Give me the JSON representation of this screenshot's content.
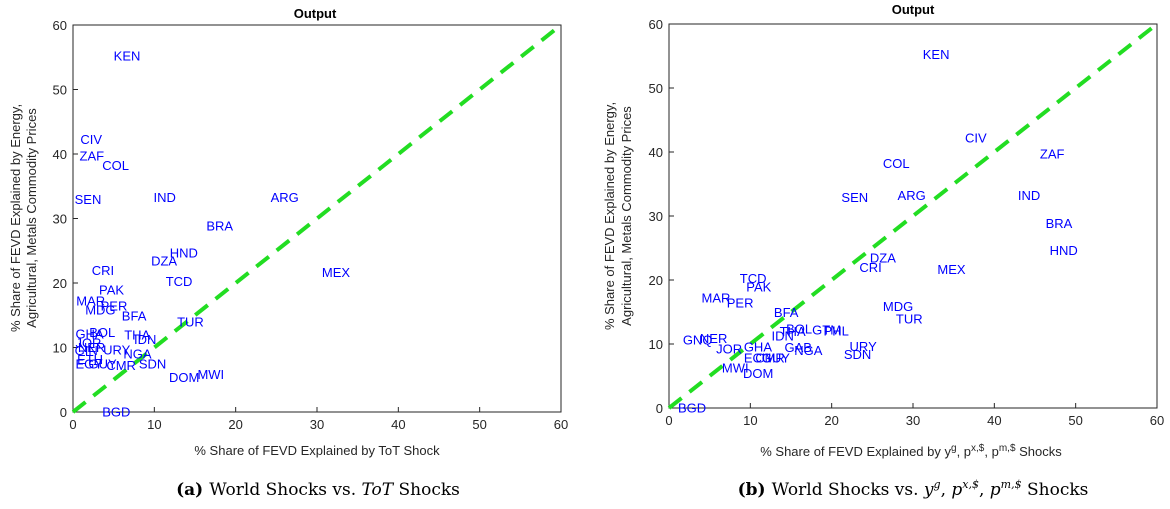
{
  "chart_data": [
    {
      "type": "scatter",
      "title": "Output",
      "xlabel": "% Share of FEVD Explained by ToT Shock",
      "ylabel": [
        "% Share of FEVD Explained by Energy,",
        "Agricultural, Metals Commodity Prices"
      ],
      "xlim": [
        0,
        60
      ],
      "ylim": [
        0,
        60
      ],
      "xticks": [
        "0",
        "10",
        "20",
        "30",
        "40",
        "50",
        "60"
      ],
      "yticks": [
        "0",
        "10",
        "20",
        "30",
        "40",
        "50",
        "60"
      ],
      "grid": false,
      "reference_line": {
        "x": [
          0,
          60
        ],
        "y": [
          0,
          60
        ],
        "style": "dashed",
        "color": "#22dd22"
      },
      "points": [
        {
          "label": "KEN",
          "x": 5.0,
          "y": 55.3
        },
        {
          "label": "CIV",
          "x": 0.9,
          "y": 42.3
        },
        {
          "label": "ZAF",
          "x": 0.8,
          "y": 39.8
        },
        {
          "label": "COL",
          "x": 3.6,
          "y": 38.3
        },
        {
          "label": "SEN",
          "x": 0.2,
          "y": 33.0
        },
        {
          "label": "IND",
          "x": 9.9,
          "y": 33.3
        },
        {
          "label": "ARG",
          "x": 24.3,
          "y": 33.3
        },
        {
          "label": "BRA",
          "x": 16.4,
          "y": 28.9
        },
        {
          "label": "HND",
          "x": 11.9,
          "y": 24.7
        },
        {
          "label": "DZA",
          "x": 9.6,
          "y": 23.5
        },
        {
          "label": "MEX",
          "x": 30.6,
          "y": 21.7
        },
        {
          "label": "CRI",
          "x": 2.3,
          "y": 22.0
        },
        {
          "label": "TCD",
          "x": 11.4,
          "y": 20.3
        },
        {
          "label": "PAK",
          "x": 3.2,
          "y": 19.0
        },
        {
          "label": "MAR",
          "x": 0.4,
          "y": 17.3
        },
        {
          "label": "PER",
          "x": 3.4,
          "y": 16.5
        },
        {
          "label": "MDG",
          "x": 1.5,
          "y": 15.9
        },
        {
          "label": "BFA",
          "x": 6.0,
          "y": 15.0
        },
        {
          "label": "TUR",
          "x": 12.8,
          "y": 14.0
        },
        {
          "label": "BOL",
          "x": 2.0,
          "y": 12.4
        },
        {
          "label": "GHA",
          "x": 0.3,
          "y": 12.2
        },
        {
          "label": "THA",
          "x": 6.3,
          "y": 12.0
        },
        {
          "label": "IDN",
          "x": 7.5,
          "y": 11.3
        },
        {
          "label": "JOR",
          "x": 0.3,
          "y": 10.8
        },
        {
          "label": "NER",
          "x": 0.6,
          "y": 10.1
        },
        {
          "label": "URY",
          "x": 3.7,
          "y": 9.7
        },
        {
          "label": "NGA",
          "x": 6.2,
          "y": 9.1
        },
        {
          "label": "GIN",
          "x": 0.2,
          "y": 9.6
        },
        {
          "label": "ETH",
          "x": 0.5,
          "y": 8.2
        },
        {
          "label": "EGY",
          "x": 0.3,
          "y": 7.5
        },
        {
          "label": "GUY",
          "x": 1.9,
          "y": 7.5
        },
        {
          "label": "CMR",
          "x": 4.1,
          "y": 7.3
        },
        {
          "label": "SDN",
          "x": 8.1,
          "y": 7.5
        },
        {
          "label": "DOM",
          "x": 11.8,
          "y": 5.4
        },
        {
          "label": "MWI",
          "x": 15.3,
          "y": 5.9
        },
        {
          "label": "BGD",
          "x": 3.6,
          "y": 0.1
        }
      ]
    },
    {
      "type": "scatter",
      "title": "Output",
      "xlabel": "% Share of FEVD Explained by y^g, p^{x,$}, p^{m,$} Shocks",
      "ylabel": [
        "% Share of FEVD Explained by Energy,",
        "Agricultural, Metals Commodity Prices"
      ],
      "xlim": [
        0,
        60
      ],
      "ylim": [
        0,
        60
      ],
      "xticks": [
        "0",
        "10",
        "20",
        "30",
        "40",
        "50",
        "60"
      ],
      "yticks": [
        "0",
        "10",
        "20",
        "30",
        "40",
        "50",
        "60"
      ],
      "grid": false,
      "reference_line": {
        "x": [
          0,
          60
        ],
        "y": [
          0,
          60
        ],
        "style": "dashed",
        "color": "#22dd22"
      },
      "points": [
        {
          "label": "KEN",
          "x": 31.2,
          "y": 55.3
        },
        {
          "label": "CIV",
          "x": 36.4,
          "y": 42.3
        },
        {
          "label": "ZAF",
          "x": 45.6,
          "y": 39.8
        },
        {
          "label": "COL",
          "x": 26.3,
          "y": 38.3
        },
        {
          "label": "SEN",
          "x": 21.2,
          "y": 33.0
        },
        {
          "label": "ARG",
          "x": 28.1,
          "y": 33.3
        },
        {
          "label": "IND",
          "x": 42.9,
          "y": 33.3
        },
        {
          "label": "BRA",
          "x": 46.3,
          "y": 28.9
        },
        {
          "label": "HND",
          "x": 46.8,
          "y": 24.7
        },
        {
          "label": "DZA",
          "x": 24.7,
          "y": 23.5
        },
        {
          "label": "CRI",
          "x": 23.4,
          "y": 22.0
        },
        {
          "label": "MEX",
          "x": 33.0,
          "y": 21.7
        },
        {
          "label": "TCD",
          "x": 8.7,
          "y": 20.3
        },
        {
          "label": "PAK",
          "x": 9.5,
          "y": 19.0
        },
        {
          "label": "MAR",
          "x": 4.0,
          "y": 17.3
        },
        {
          "label": "PER",
          "x": 7.1,
          "y": 16.5
        },
        {
          "label": "MDG",
          "x": 26.3,
          "y": 15.9
        },
        {
          "label": "BFA",
          "x": 12.9,
          "y": 15.0
        },
        {
          "label": "TUR",
          "x": 27.9,
          "y": 14.0
        },
        {
          "label": "BOL",
          "x": 14.4,
          "y": 12.4
        },
        {
          "label": "GTM",
          "x": 17.6,
          "y": 12.3
        },
        {
          "label": "PHL",
          "x": 19.0,
          "y": 12.1
        },
        {
          "label": "THA",
          "x": 13.6,
          "y": 12.0
        },
        {
          "label": "IDN",
          "x": 12.6,
          "y": 11.3
        },
        {
          "label": "GNQ",
          "x": 1.7,
          "y": 10.7
        },
        {
          "label": "NER",
          "x": 3.8,
          "y": 10.9
        },
        {
          "label": "JOR",
          "x": 5.8,
          "y": 9.3
        },
        {
          "label": "URY",
          "x": 22.2,
          "y": 9.7
        },
        {
          "label": "GHA",
          "x": 9.2,
          "y": 9.6
        },
        {
          "label": "GAB",
          "x": 14.2,
          "y": 9.5
        },
        {
          "label": "NGA",
          "x": 15.4,
          "y": 9.1
        },
        {
          "label": "SDN",
          "x": 21.5,
          "y": 8.4
        },
        {
          "label": "ECU",
          "x": 9.2,
          "y": 7.9
        },
        {
          "label": "CMR",
          "x": 10.6,
          "y": 7.9
        },
        {
          "label": "GUY",
          "x": 11.4,
          "y": 7.9
        },
        {
          "label": "MWI",
          "x": 6.5,
          "y": 6.3
        },
        {
          "label": "DOM",
          "x": 9.1,
          "y": 5.5
        },
        {
          "label": "BGD",
          "x": 1.1,
          "y": 0.1
        }
      ]
    }
  ],
  "captions": [
    {
      "tag": "(a)",
      "text": "World Shocks vs. ",
      "math": "ToT",
      "suffix": " Shocks"
    },
    {
      "tag": "(b)",
      "text": "World Shocks vs. ",
      "math": "y^g, p^{x,$}, p^{m,$}",
      "suffix": " Shocks"
    }
  ]
}
